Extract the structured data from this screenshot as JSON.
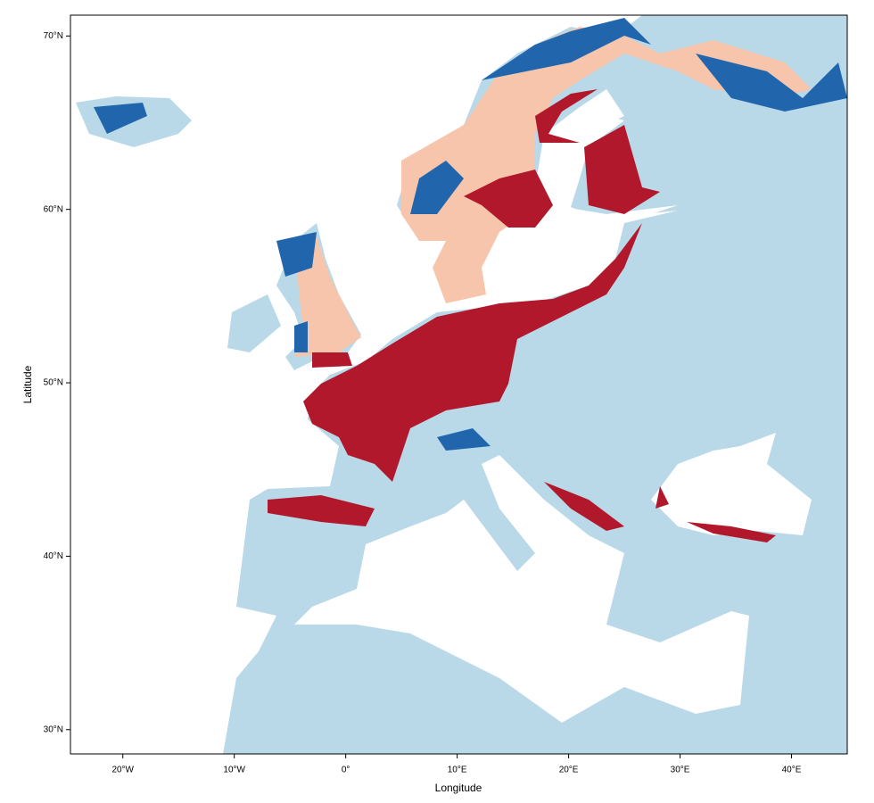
{
  "chart_data": {
    "type": "map",
    "xlabel": "Longitude",
    "ylabel": "Latitude",
    "xlim": [
      -24.7,
      45
    ],
    "ylim": [
      28.6,
      71.2
    ],
    "xticks": [
      {
        "value": -20,
        "label": "20°W"
      },
      {
        "value": -10,
        "label": "10°W"
      },
      {
        "value": 0,
        "label": "0°"
      },
      {
        "value": 10,
        "label": "10°E"
      },
      {
        "value": 20,
        "label": "20°E"
      },
      {
        "value": 30,
        "label": "30°E"
      },
      {
        "value": 40,
        "label": "40°E"
      }
    ],
    "yticks": [
      {
        "value": 30,
        "label": "30°N"
      },
      {
        "value": 40,
        "label": "40°N"
      },
      {
        "value": 50,
        "label": "50°N"
      },
      {
        "value": 60,
        "label": "60°N"
      },
      {
        "value": 70,
        "label": "70°N"
      }
    ]
  }
}
